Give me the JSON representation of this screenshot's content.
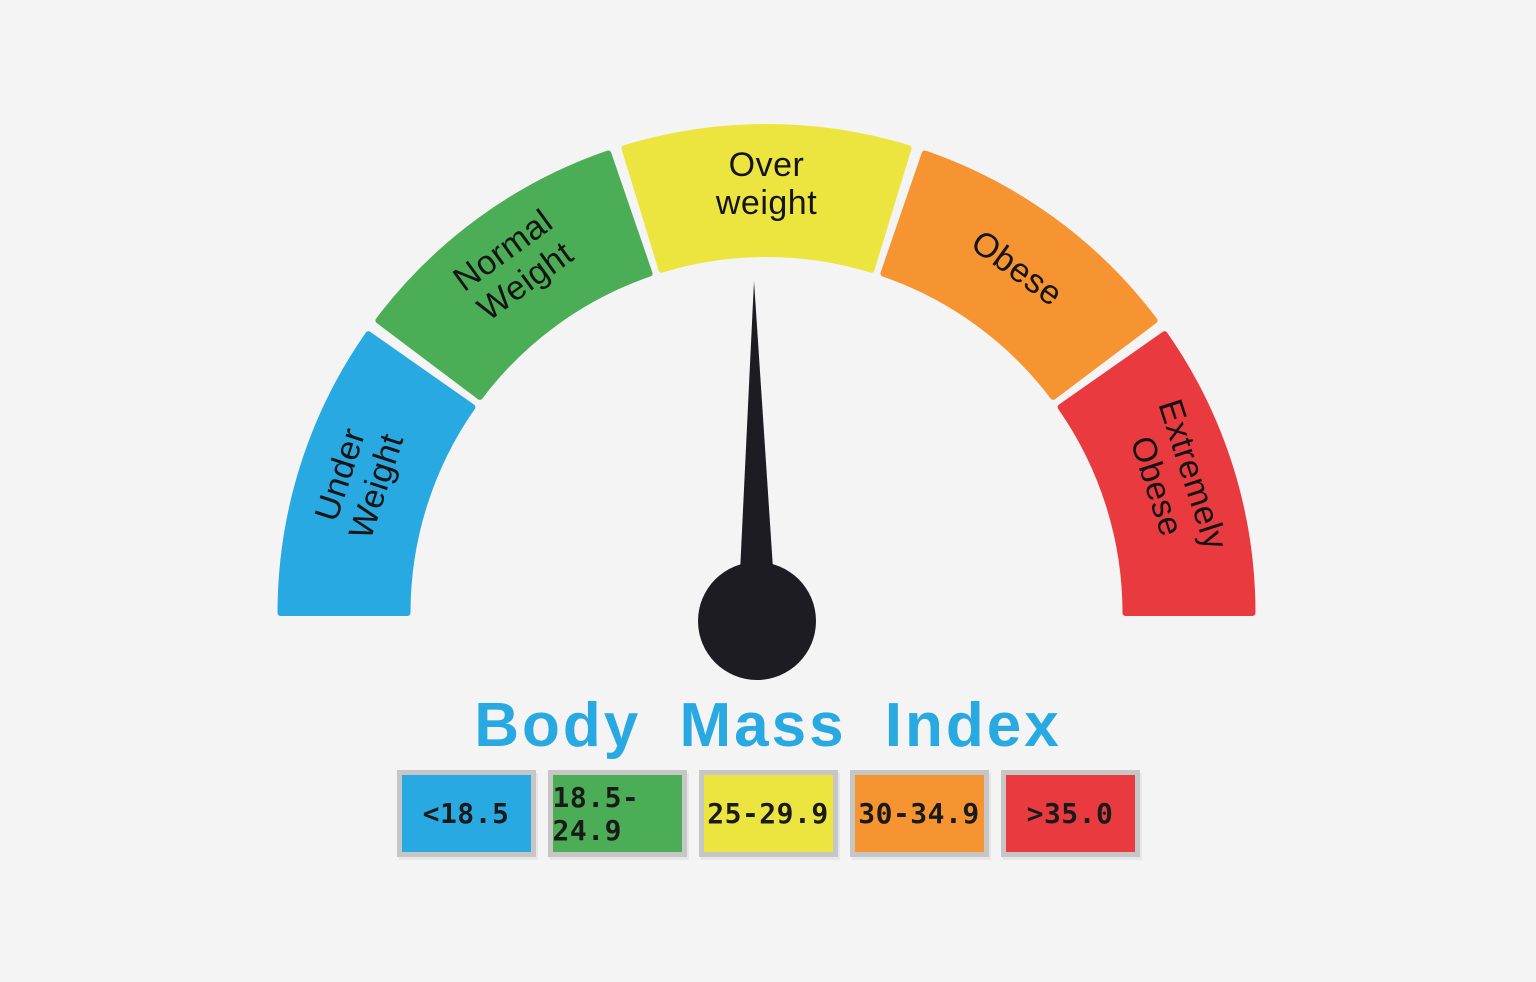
{
  "background_color": "#F4F4F4",
  "title": {
    "text": "Body Mass Index",
    "color": "#29A9E1"
  },
  "gauge": {
    "label_color": "#141414",
    "needle_color": "#1C1C22",
    "segments": [
      {
        "id": "underweight",
        "label_lines": [
          "Under",
          "Weight"
        ],
        "color": "#29A9E1",
        "range": "<18.5"
      },
      {
        "id": "normal-weight",
        "label_lines": [
          "Normal",
          "Weight"
        ],
        "color": "#4BAD56",
        "range": "18.5-24.9"
      },
      {
        "id": "overweight",
        "label_lines": [
          "Over",
          "weight"
        ],
        "color": "#EDE53F",
        "range": "25-29.9"
      },
      {
        "id": "obese",
        "label_lines": [
          "Obese"
        ],
        "color": "#F59431",
        "range": "30-34.9"
      },
      {
        "id": "extremely-obese",
        "label_lines": [
          "Extremely",
          "Obese"
        ],
        "color": "#E93B3F",
        "range": ">35.0"
      }
    ]
  },
  "legend": {
    "border_color": "#C6C6C6",
    "text_color": "#1A1A1A",
    "items": [
      {
        "label": "<18.5",
        "color": "#29A9E1"
      },
      {
        "label": "18.5-24.9",
        "color": "#4BAD56"
      },
      {
        "label": "25-29.9",
        "color": "#EDE53F"
      },
      {
        "label": "30-34.9",
        "color": "#F59431"
      },
      {
        "label": ">35.0",
        "color": "#E93B3F"
      }
    ]
  },
  "chart_data": {
    "type": "gauge",
    "title": "Body Mass Index",
    "categories": [
      "Under Weight",
      "Normal Weight",
      "Over weight",
      "Obese",
      "Extremely Obese"
    ],
    "ranges": [
      "<18.5",
      "18.5-24.9",
      "25-29.9",
      "30-34.9",
      ">35.0"
    ],
    "colors": [
      "#29A9E1",
      "#4BAD56",
      "#EDE53F",
      "#F59431",
      "#E93B3F"
    ],
    "segment_angles_deg": [
      [
        180,
        144
      ],
      [
        144,
        108
      ],
      [
        108,
        72
      ],
      [
        72,
        36
      ],
      [
        36,
        0
      ]
    ],
    "needle_angle_deg": 90.5,
    "needle_points_to": "Over weight",
    "legend_position": "bottom"
  }
}
